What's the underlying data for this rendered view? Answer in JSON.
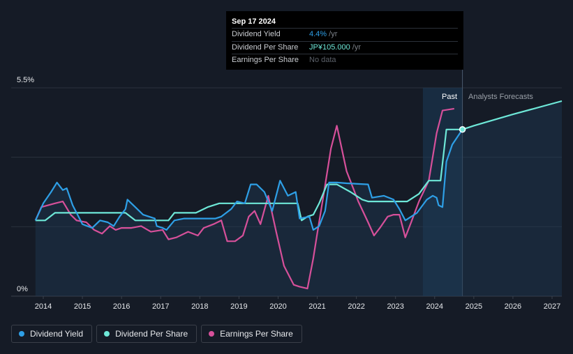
{
  "tooltip": {
    "date": "Sep 17 2024",
    "rows": [
      {
        "label": "Dividend Yield",
        "value": "4.4%",
        "unit": " /yr"
      },
      {
        "label": "Dividend Per Share",
        "value": "JP¥105.000",
        "unit": " /yr"
      },
      {
        "label": "Earnings Per Share",
        "value": "No data",
        "unit": ""
      }
    ]
  },
  "legend": {
    "items": [
      {
        "label": "Dividend Yield",
        "color": "#2e9fe6"
      },
      {
        "label": "Dividend Per Share",
        "color": "#6ee8d8"
      },
      {
        "label": "Earnings Per Share",
        "color": "#d6509a"
      }
    ]
  },
  "colors": {
    "background": "#151b26",
    "past_region": "#1c3a57",
    "yield": "#2e9fe6",
    "dps": "#6ee8d8",
    "eps": "#d6509a",
    "grid": "#2b323d"
  },
  "chart_data": {
    "type": "line",
    "x_axis": {
      "ticks": [
        "2014",
        "2015",
        "2016",
        "2017",
        "2018",
        "2019",
        "2020",
        "2021",
        "2022",
        "2023",
        "2024",
        "2025",
        "2026",
        "2027"
      ],
      "range": [
        2013.75,
        2027.25
      ]
    },
    "y_axis": {
      "label_top": "5.5%",
      "label_bottom": "0%",
      "range": [
        0,
        5.5
      ],
      "unit": "%"
    },
    "regions": {
      "past_label": "Past",
      "forecast_label": "Analysts Forecasts",
      "past_start": 2023.7,
      "today": 2024.71
    },
    "grid": true,
    "series": [
      {
        "name": "Dividend Yield",
        "scale": "percent",
        "points": [
          [
            2013.8,
            2.0
          ],
          [
            2014.0,
            2.45
          ],
          [
            2014.2,
            2.75
          ],
          [
            2014.35,
            3.0
          ],
          [
            2014.5,
            2.8
          ],
          [
            2014.6,
            2.85
          ],
          [
            2014.75,
            2.4
          ],
          [
            2015.0,
            1.9
          ],
          [
            2015.25,
            1.8
          ],
          [
            2015.45,
            2.0
          ],
          [
            2015.65,
            1.95
          ],
          [
            2015.8,
            1.85
          ],
          [
            2015.95,
            2.1
          ],
          [
            2016.1,
            2.3
          ],
          [
            2016.15,
            2.55
          ],
          [
            2016.35,
            2.35
          ],
          [
            2016.55,
            2.15
          ],
          [
            2016.85,
            2.05
          ],
          [
            2016.9,
            1.85
          ],
          [
            2017.05,
            1.8
          ],
          [
            2017.15,
            1.75
          ],
          [
            2017.35,
            2.0
          ],
          [
            2017.6,
            2.05
          ],
          [
            2018.0,
            2.05
          ],
          [
            2018.4,
            2.05
          ],
          [
            2018.55,
            2.1
          ],
          [
            2018.8,
            2.3
          ],
          [
            2018.95,
            2.5
          ],
          [
            2019.15,
            2.45
          ],
          [
            2019.3,
            2.95
          ],
          [
            2019.45,
            2.95
          ],
          [
            2019.65,
            2.75
          ],
          [
            2019.85,
            2.25
          ],
          [
            2020.05,
            3.05
          ],
          [
            2020.25,
            2.65
          ],
          [
            2020.45,
            2.75
          ],
          [
            2020.55,
            2.05
          ],
          [
            2020.8,
            2.1
          ],
          [
            2020.9,
            1.75
          ],
          [
            2021.05,
            1.85
          ],
          [
            2021.2,
            2.25
          ],
          [
            2021.3,
            3.0
          ],
          [
            2021.5,
            3.0
          ],
          [
            2021.75,
            2.98
          ],
          [
            2022.3,
            2.95
          ],
          [
            2022.4,
            2.6
          ],
          [
            2022.7,
            2.65
          ],
          [
            2022.95,
            2.55
          ],
          [
            2023.1,
            2.3
          ],
          [
            2023.25,
            2.0
          ],
          [
            2023.55,
            2.2
          ],
          [
            2023.8,
            2.55
          ],
          [
            2023.95,
            2.65
          ],
          [
            2024.05,
            2.6
          ],
          [
            2024.1,
            2.4
          ],
          [
            2024.2,
            2.35
          ],
          [
            2024.3,
            3.55
          ],
          [
            2024.45,
            4.0
          ],
          [
            2024.71,
            4.4
          ]
        ]
      },
      {
        "name": "Dividend Per Share",
        "scale": "yen",
        "y_scale_note": "plotted on shared axis",
        "points": [
          [
            2013.8,
            2.0
          ],
          [
            2014.05,
            2.0
          ],
          [
            2014.3,
            2.2
          ],
          [
            2014.5,
            2.2
          ],
          [
            2016.1,
            2.2
          ],
          [
            2016.35,
            2.0
          ],
          [
            2017.2,
            2.0
          ],
          [
            2017.35,
            2.2
          ],
          [
            2017.9,
            2.2
          ],
          [
            2018.2,
            2.35
          ],
          [
            2018.5,
            2.45
          ],
          [
            2020.5,
            2.45
          ],
          [
            2020.6,
            2.0
          ],
          [
            2020.75,
            2.1
          ],
          [
            2020.9,
            2.15
          ],
          [
            2021.05,
            2.45
          ],
          [
            2021.25,
            2.95
          ],
          [
            2021.5,
            2.95
          ],
          [
            2021.85,
            2.75
          ],
          [
            2022.15,
            2.55
          ],
          [
            2022.3,
            2.5
          ],
          [
            2023.3,
            2.5
          ],
          [
            2023.6,
            2.7
          ],
          [
            2023.85,
            3.05
          ],
          [
            2024.15,
            3.05
          ],
          [
            2024.3,
            4.4
          ],
          [
            2024.71,
            4.4
          ],
          [
            2025.0,
            4.5
          ],
          [
            2026.0,
            4.8
          ],
          [
            2027.25,
            5.15
          ]
        ]
      },
      {
        "name": "Earnings Per Share",
        "scale": "yen",
        "points": [
          [
            2013.8,
            2.0
          ],
          [
            2013.95,
            2.35
          ],
          [
            2014.3,
            2.45
          ],
          [
            2014.5,
            2.5
          ],
          [
            2014.7,
            2.15
          ],
          [
            2014.85,
            2.0
          ],
          [
            2015.1,
            1.95
          ],
          [
            2015.3,
            1.75
          ],
          [
            2015.5,
            1.65
          ],
          [
            2015.7,
            1.85
          ],
          [
            2015.85,
            1.75
          ],
          [
            2016.0,
            1.8
          ],
          [
            2016.25,
            1.8
          ],
          [
            2016.5,
            1.85
          ],
          [
            2016.75,
            1.7
          ],
          [
            2017.05,
            1.75
          ],
          [
            2017.2,
            1.5
          ],
          [
            2017.4,
            1.55
          ],
          [
            2017.7,
            1.7
          ],
          [
            2017.95,
            1.6
          ],
          [
            2018.1,
            1.8
          ],
          [
            2018.35,
            1.9
          ],
          [
            2018.55,
            2.0
          ],
          [
            2018.7,
            1.45
          ],
          [
            2018.9,
            1.45
          ],
          [
            2019.1,
            1.6
          ],
          [
            2019.25,
            2.1
          ],
          [
            2019.4,
            2.25
          ],
          [
            2019.55,
            1.9
          ],
          [
            2019.75,
            2.65
          ],
          [
            2019.95,
            1.7
          ],
          [
            2020.15,
            0.8
          ],
          [
            2020.4,
            0.3
          ],
          [
            2020.55,
            0.25
          ],
          [
            2020.75,
            0.2
          ],
          [
            2020.9,
            1.0
          ],
          [
            2021.0,
            1.65
          ],
          [
            2021.15,
            2.6
          ],
          [
            2021.35,
            3.9
          ],
          [
            2021.5,
            4.5
          ],
          [
            2021.75,
            3.3
          ],
          [
            2022.05,
            2.5
          ],
          [
            2022.3,
            1.95
          ],
          [
            2022.45,
            1.6
          ],
          [
            2022.6,
            1.8
          ],
          [
            2022.8,
            2.1
          ],
          [
            2022.95,
            2.15
          ],
          [
            2023.1,
            2.15
          ],
          [
            2023.25,
            1.55
          ],
          [
            2023.4,
            1.95
          ],
          [
            2023.6,
            2.5
          ],
          [
            2023.85,
            3.05
          ],
          [
            2024.05,
            4.3
          ],
          [
            2024.2,
            4.9
          ],
          [
            2024.5,
            4.95
          ]
        ]
      }
    ]
  }
}
